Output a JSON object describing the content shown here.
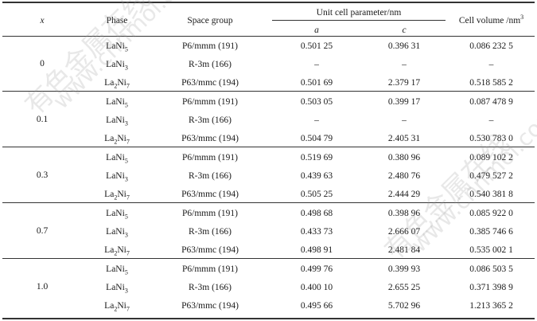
{
  "header": {
    "x": "x",
    "phase": "Phase",
    "space_group": "Space group",
    "unit_cell": "Unit cell parameter/nm",
    "a": "a",
    "c": "c",
    "cell_volume": "Cell volume /nm",
    "cell_volume_sup": "3"
  },
  "groups": [
    {
      "x": "0",
      "rows": [
        {
          "phase_base": "LaNi",
          "phase_sub": "5",
          "phase_prefix": "",
          "phase_prefix_sub": "",
          "sg": "P6/mmm (191)",
          "a": "0.501 25",
          "c": "0.396 31",
          "v": "0.086 232 5"
        },
        {
          "phase_base": "LaNi",
          "phase_sub": "3",
          "phase_prefix": "",
          "phase_prefix_sub": "",
          "sg": "R-3m (166)",
          "a": "–",
          "c": "–",
          "v": "–"
        },
        {
          "phase_base": "Ni",
          "phase_sub": "7",
          "phase_prefix": "La",
          "phase_prefix_sub": "2",
          "sg": "P63/mmc (194)",
          "a": "0.501 69",
          "c": "2.379 17",
          "v": "0.518 585 2"
        }
      ]
    },
    {
      "x": "0.1",
      "rows": [
        {
          "phase_base": "LaNi",
          "phase_sub": "5",
          "phase_prefix": "",
          "phase_prefix_sub": "",
          "sg": "P6/mmm (191)",
          "a": "0.503 05",
          "c": "0.399 17",
          "v": "0.087 478 9"
        },
        {
          "phase_base": "LaNi",
          "phase_sub": "3",
          "phase_prefix": "",
          "phase_prefix_sub": "",
          "sg": "R-3m (166)",
          "a": "–",
          "c": "–",
          "v": "–"
        },
        {
          "phase_base": "Ni",
          "phase_sub": "7",
          "phase_prefix": "La",
          "phase_prefix_sub": "2",
          "sg": "P63/mmc (194)",
          "a": "0.504 79",
          "c": "2.405 31",
          "v": "0.530 783 0"
        }
      ]
    },
    {
      "x": "0.3",
      "rows": [
        {
          "phase_base": "LaNi",
          "phase_sub": "5",
          "phase_prefix": "",
          "phase_prefix_sub": "",
          "sg": "P6/mmm (191)",
          "a": "0.519 69",
          "c": "0.380 96",
          "v": "0.089 102 2"
        },
        {
          "phase_base": "LaNi",
          "phase_sub": "3",
          "phase_prefix": "",
          "phase_prefix_sub": "",
          "sg": "R-3m (166)",
          "a": "0.439 63",
          "c": "2.480 76",
          "v": "0.479 527 2"
        },
        {
          "phase_base": "Ni",
          "phase_sub": "7",
          "phase_prefix": "La",
          "phase_prefix_sub": "2",
          "sg": "P63/mmc (194)",
          "a": "0.505 25",
          "c": "2.444 29",
          "v": "0.540 381 8"
        }
      ]
    },
    {
      "x": "0.7",
      "rows": [
        {
          "phase_base": "LaNi",
          "phase_sub": "5",
          "phase_prefix": "",
          "phase_prefix_sub": "",
          "sg": "P6/mmm (191)",
          "a": "0.498 68",
          "c": "0.398 96",
          "v": "0.085 922 0"
        },
        {
          "phase_base": "LaNi",
          "phase_sub": "3",
          "phase_prefix": "",
          "phase_prefix_sub": "",
          "sg": "R-3m (166)",
          "a": "0.433 73",
          "c": "2.666 07",
          "v": "0.385 746 6"
        },
        {
          "phase_base": "Ni",
          "phase_sub": "7",
          "phase_prefix": "La",
          "phase_prefix_sub": "2",
          "sg": "P63/mmc (194)",
          "a": "0.498 91",
          "c": "2.481 84",
          "v": "0.535 002 1"
        }
      ]
    },
    {
      "x": "1.0",
      "rows": [
        {
          "phase_base": "LaNi",
          "phase_sub": "5",
          "phase_prefix": "",
          "phase_prefix_sub": "",
          "sg": "P6/mmm (191)",
          "a": "0.499 76",
          "c": "0.399 93",
          "v": "0.086 503 5"
        },
        {
          "phase_base": "LaNi",
          "phase_sub": "3",
          "phase_prefix": "",
          "phase_prefix_sub": "",
          "sg": "R-3m (166)",
          "a": "0.400 10",
          "c": "2.655 25",
          "v": "0.371 398 9"
        },
        {
          "phase_base": "Ni",
          "phase_sub": "7",
          "phase_prefix": "La",
          "phase_prefix_sub": "2",
          "sg": "P63/mmc (194)",
          "a": "0.495 66",
          "c": "5.702 96",
          "v": "1.213 365 2"
        }
      ]
    }
  ],
  "watermarks": [
    {
      "text": "有色金属在线",
      "style": "upper-left"
    },
    {
      "text": "www.cnnmol.com",
      "style": "upper-left"
    },
    {
      "text": "有色金属在线",
      "style": "lower-right"
    },
    {
      "text": "www.cnnmol.com",
      "style": "lower-right"
    }
  ]
}
